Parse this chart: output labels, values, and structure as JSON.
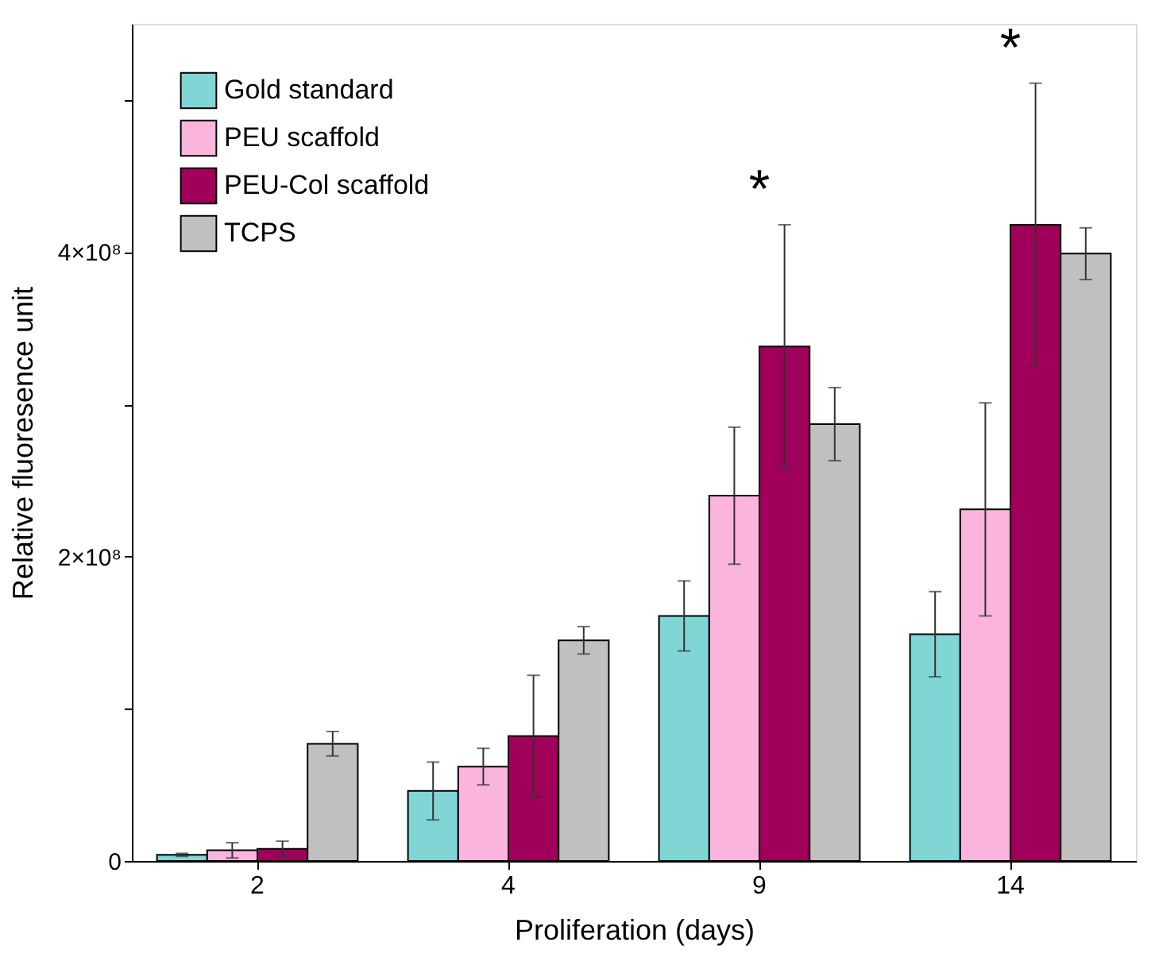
{
  "chart_data": {
    "type": "bar",
    "xlabel": "Proliferation (days)",
    "ylabel": "Relative fluoresence unit",
    "categories": [
      "2",
      "4",
      "9",
      "14"
    ],
    "series": [
      {
        "name": "Gold standard",
        "color": "#7fd6d4",
        "values": [
          4000000,
          46000000,
          161000000,
          149000000
        ],
        "errors": [
          1000000,
          19000000,
          23000000,
          28000000
        ]
      },
      {
        "name": "PEU scaffold",
        "color": "#fbb4dc",
        "values": [
          7000000,
          62000000,
          240000000,
          231000000
        ],
        "errors": [
          5000000,
          12000000,
          45000000,
          70000000
        ]
      },
      {
        "name": "PEU-Col scaffold",
        "color": "#a0005a",
        "values": [
          8000000,
          82000000,
          338000000,
          418000000
        ],
        "errors": [
          5000000,
          40000000,
          80000000,
          93000000
        ]
      },
      {
        "name": "TCPS",
        "color": "#c0c0c0",
        "values": [
          77000000,
          145000000,
          287000000,
          399000000
        ],
        "errors": [
          8000000,
          9000000,
          24000000,
          17000000
        ]
      }
    ],
    "ylim": [
      0,
      550000000
    ],
    "yticks": [
      0,
      {
        "value": 100000000,
        "label": null
      },
      {
        "value": 200000000,
        "label": "2×10⁸"
      },
      {
        "value": 300000000,
        "label": null
      },
      {
        "value": 400000000,
        "label": "4×10⁸"
      },
      {
        "value": 500000000,
        "label": null
      }
    ],
    "annotations": [
      "*",
      "*"
    ],
    "legend": "top left",
    "grid": false
  }
}
